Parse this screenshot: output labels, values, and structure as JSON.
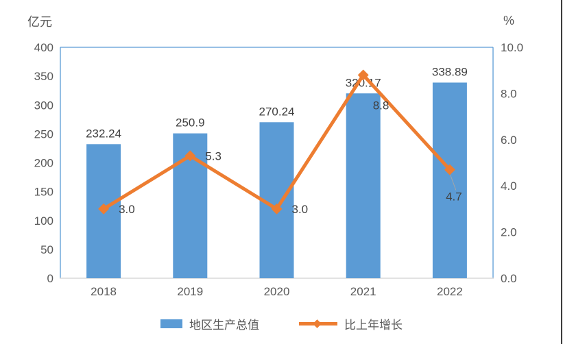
{
  "unit_left": "亿元",
  "unit_right": "%",
  "chart_data": {
    "type": "bar",
    "subtype": "bar+line combo",
    "categories": [
      "2018",
      "2019",
      "2020",
      "2021",
      "2022"
    ],
    "series": [
      {
        "name": "地区生产总值",
        "type": "bar",
        "axis": "left",
        "values": [
          232.24,
          250.9,
          270.24,
          320.17,
          338.89
        ],
        "labels": [
          "232.24",
          "250.9",
          "270.24",
          "320.17",
          "338.89"
        ],
        "color": "#5B9BD5"
      },
      {
        "name": "比上年增长",
        "type": "line",
        "axis": "right",
        "values": [
          3.0,
          5.3,
          3.0,
          8.8,
          4.7
        ],
        "labels": [
          "3.0",
          "5.3",
          "3.0",
          "8.8",
          "4.7"
        ],
        "color": "#ED7D31",
        "marker": "diamond"
      }
    ],
    "left_axis": {
      "unit": "亿元",
      "min": 0,
      "max": 400,
      "tick_step": 50,
      "ticks": [
        "400",
        "350",
        "300",
        "250",
        "200",
        "150",
        "100",
        "50",
        "0"
      ]
    },
    "right_axis": {
      "unit": "%",
      "min": 0,
      "max": 10,
      "tick_step": 2,
      "ticks": [
        "10.0",
        "8.0",
        "6.0",
        "4.0",
        "2.0",
        "0.0"
      ]
    },
    "grid": false,
    "legend_position": "bottom",
    "colors": {
      "bar": "#5B9BD5",
      "line": "#ED7D31",
      "axis_text": "#595959",
      "data_label_text": "#404040",
      "plot_border": "#5B9BD5",
      "baseline": "#D9D9D9"
    }
  },
  "legend": {
    "items": [
      {
        "label": "地区生产总值",
        "swatch": "bar"
      },
      {
        "label": "比上年增长",
        "swatch": "line-diamond"
      }
    ]
  }
}
